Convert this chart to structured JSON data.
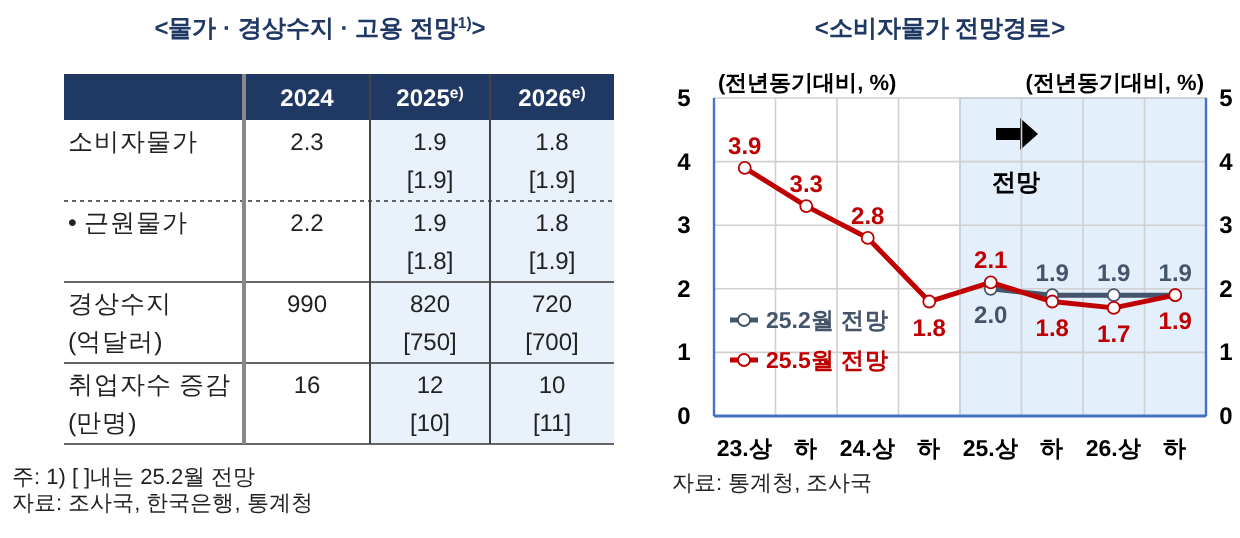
{
  "chart_data": [
    {
      "type": "other",
      "title": "<물가 · 경상수지 · 고용 전망$^{1)}$>",
      "categories": [
        "2024",
        "2025$^{e)}$",
        "2026$^{e)}$"
      ],
      "y_categories": [
        "소비자물가",
        "• 근원물가",
        "경상수지\n(억달러)",
        "취업자수 증감\n(만명)"
      ],
      "cell_labels": [
        [
          "2.3",
          "1.9\n[1.9]",
          "1.8\n[1.9]"
        ],
        [
          "2.2",
          "1.9\n[1.8]",
          "1.8\n[1.9]"
        ],
        [
          "990",
          "820\n[750]",
          "720\n[700]"
        ],
        [
          "16",
          "12\n[10]",
          "10\n[11]"
        ]
      ],
      "annotations": [
        "주: 1) [ ]내는 25.2월 전망",
        "자료: 조사국, 한국은행, 통계청"
      ]
    },
    {
      "type": "line",
      "title": "<소비자물가 전망경로>",
      "ylabel": "(전년동기대비, %)",
      "y2label": "(전년동기대비, %)",
      "categories": [
        "23.상",
        "하",
        "24.상",
        "하",
        "25.상",
        "하",
        "26.상",
        "하"
      ],
      "ylim": [
        0,
        5
      ],
      "yticks": [
        0,
        1,
        2,
        3,
        4,
        5
      ],
      "y2lim": [
        0,
        5
      ],
      "y2ticks": [
        0,
        1,
        2,
        3,
        4,
        5
      ],
      "grid": true,
      "legend": "bottom left",
      "marker": "circle",
      "line_style": "solid",
      "series": [
        {
          "name": "25.2월 전망",
          "color": "#44546a",
          "values": [
            null,
            null,
            null,
            null,
            2.0,
            1.9,
            1.9,
            1.9
          ],
          "value_labels": [
            null,
            null,
            null,
            null,
            "2.0",
            "1.9",
            "1.9",
            "1.9"
          ]
        },
        {
          "name": "25.5월 전망",
          "color": "#c00000",
          "values": [
            3.9,
            3.3,
            2.8,
            1.8,
            2.1,
            1.8,
            1.7,
            1.9
          ],
          "value_labels": [
            "3.9",
            "3.3",
            "2.8",
            "1.8",
            "2.1",
            "1.8",
            "1.7",
            "1.9"
          ]
        }
      ],
      "annotations": [
        "전망",
        "자료: 통계청, 조사국"
      ]
    }
  ]
}
